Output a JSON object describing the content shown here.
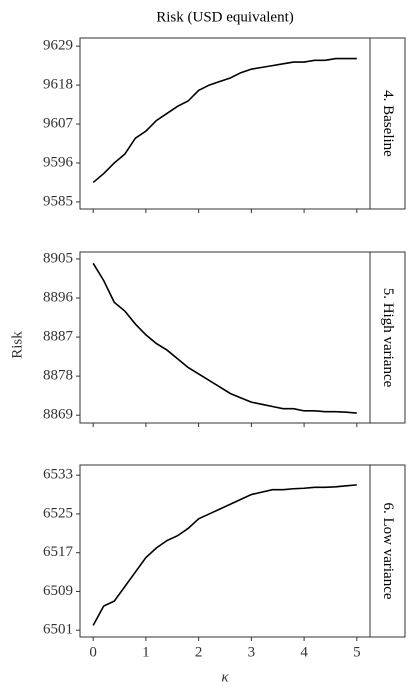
{
  "title": "Risk (USD equivalent)",
  "y_label": "Risk",
  "x_label": "κ",
  "xlim": [
    -0.25,
    5.25
  ],
  "xticks": [
    0,
    1,
    2,
    3,
    4,
    5
  ],
  "chart_data": [
    {
      "type": "line",
      "facet_label": "4. Baseline",
      "color": "#000000",
      "x": [
        0,
        0.2,
        0.4,
        0.6,
        0.8,
        1.0,
        1.2,
        1.4,
        1.6,
        1.8,
        2.0,
        2.2,
        2.4,
        2.6,
        2.8,
        3.0,
        3.2,
        3.4,
        3.6,
        3.8,
        4.0,
        4.2,
        4.4,
        4.6,
        4.8,
        5.0
      ],
      "values": [
        9590.5,
        9593,
        9596,
        9598.5,
        9603,
        9605,
        9608,
        9610,
        9612,
        9613.5,
        9616.5,
        9618,
        9619,
        9620,
        9621.5,
        9622.5,
        9623,
        9623.5,
        9624,
        9624.5,
        9624.5,
        9625,
        9625,
        9625.5,
        9625.5,
        9625.5
      ],
      "ylim": [
        9583,
        9631.3
      ],
      "yticks": [
        9585,
        9596,
        9607,
        9618,
        9629
      ]
    },
    {
      "type": "line",
      "facet_label": "5. High variance",
      "color": "#000000",
      "x": [
        0,
        0.2,
        0.4,
        0.6,
        0.8,
        1.0,
        1.2,
        1.4,
        1.6,
        1.8,
        2.0,
        2.2,
        2.4,
        2.6,
        2.8,
        3.0,
        3.2,
        3.4,
        3.6,
        3.8,
        4.0,
        4.2,
        4.4,
        4.6,
        4.8,
        5.0
      ],
      "values": [
        8904,
        8900,
        8895,
        8893,
        8890,
        8887.5,
        8885.5,
        8884,
        8882,
        8880,
        8878.5,
        8877,
        8875.5,
        8874,
        8873,
        8872,
        8871.5,
        8871,
        8870.5,
        8870.5,
        8870,
        8870,
        8869.8,
        8869.8,
        8869.7,
        8869.5
      ],
      "ylim": [
        8867.2,
        8906.6
      ],
      "yticks": [
        8869,
        8878,
        8887,
        8896,
        8905
      ]
    },
    {
      "type": "line",
      "facet_label": "6. Low variance",
      "color": "#000000",
      "x": [
        0,
        0.2,
        0.4,
        0.6,
        0.8,
        1.0,
        1.2,
        1.4,
        1.6,
        1.8,
        2.0,
        2.2,
        2.4,
        2.6,
        2.8,
        3.0,
        3.2,
        3.4,
        3.6,
        3.8,
        4.0,
        4.2,
        4.4,
        4.6,
        4.8,
        5.0
      ],
      "values": [
        6502,
        6506,
        6507,
        6510,
        6513,
        6516,
        6518,
        6519.5,
        6520.5,
        6522,
        6524,
        6525,
        6526,
        6527,
        6528,
        6529,
        6529.5,
        6530,
        6530,
        6530.2,
        6530.3,
        6530.5,
        6530.5,
        6530.6,
        6530.8,
        6531
      ],
      "ylim": [
        6499.6,
        6535.1
      ],
      "yticks": [
        6501,
        6509,
        6517,
        6525,
        6533
      ]
    }
  ]
}
